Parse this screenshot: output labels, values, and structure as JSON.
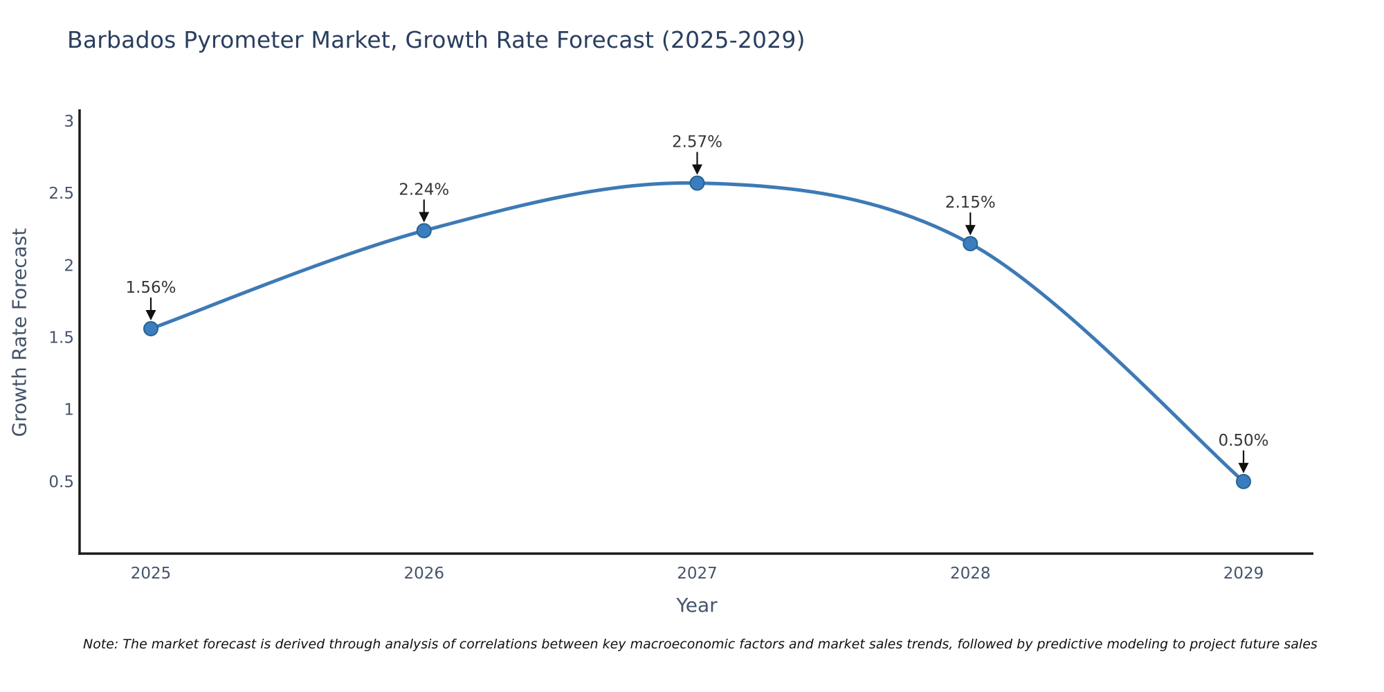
{
  "title": "Barbados Pyrometer Market, Growth Rate Forecast (2025-2029)",
  "note": "Note: The market forecast is derived through analysis of correlations between key macroeconomic factors and market sales trends, followed by predictive modeling to project future sales",
  "chart_data": {
    "type": "line",
    "title": "Barbados Pyrometer Market, Growth Rate Forecast (2025-2029)",
    "xlabel": "Year",
    "ylabel": "Growth Rate Forecast",
    "x": [
      2025,
      2026,
      2027,
      2028,
      2029
    ],
    "values": [
      1.56,
      2.24,
      2.57,
      2.15,
      0.5
    ],
    "point_labels": [
      "1.56%",
      "2.24%",
      "2.57%",
      "2.15%",
      "0.50%"
    ],
    "xticks": [
      "2025",
      "2026",
      "2027",
      "2028",
      "2029"
    ],
    "yticks": [
      "0.5",
      "1",
      "1.5",
      "2",
      "2.5",
      "3"
    ],
    "ytick_values": [
      0.5,
      1,
      1.5,
      2,
      2.5,
      3
    ],
    "ylim": [
      0,
      3
    ],
    "grid": false,
    "legend": false,
    "line_shape": "spline",
    "annotations_have_arrows": true
  },
  "colors": {
    "background": "#ffffff",
    "title_text": "#2a3f5f",
    "axis_text": "#44546a",
    "axis_line": "#1a1a1a",
    "line": "#3d7ab5",
    "marker_fill": "#3a7ebf",
    "marker_edge": "#28628f",
    "annotation_text": "#363636",
    "arrow": "#111111",
    "note_text": "#101010"
  }
}
